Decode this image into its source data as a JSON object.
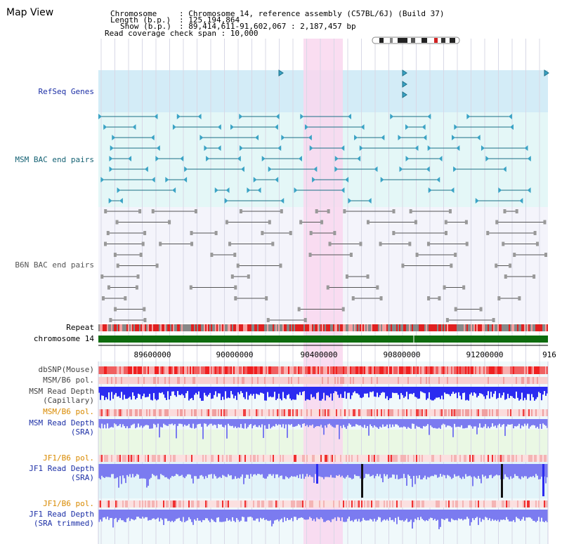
{
  "page": {
    "title": "Map View"
  },
  "info": {
    "chromosome_key": "Chromosome",
    "chromosome_val": ": Chromosome 14, reference assembly (C57BL/6J) (Build 37)",
    "length_key": "Length (b.p.)",
    "length_val": ": 125,194,864",
    "show_key": "Show (b.p.)",
    "show_val": ": 89,414,611-91,602,067 : 2,187,457 bp",
    "coverage": "Read coverage check span : 10,000"
  },
  "tracks": {
    "refseq": "RefSeq Genes",
    "msm_bac": "MSM BAC end pairs",
    "b6n_bac": "B6N BAC end pairs",
    "repeat": "Repeat",
    "chromosome": "chromosome 14",
    "dbsnp": "dbSNP(Mouse)",
    "msm_b6_pol1": "MSM/B6 pol.",
    "msm_depth_cap_1": "MSM Read Depth",
    "msm_depth_cap_2": "(Capillary)",
    "msm_b6_pol2": "MSM/B6 pol.",
    "msm_depth_sra_1": "MSM Read Depth",
    "msm_depth_sra_2": "(SRA)",
    "jf1_b6_pol1": "JF1/B6 pol.",
    "jf1_depth_sra_1": "JF1 Read Depth",
    "jf1_depth_sra_2": "(SRA)",
    "jf1_b6_pol2": "JF1/B6 pol.",
    "jf1_depth_trim_1": "JF1 Read Depth",
    "jf1_depth_trim_2": "(SRA trimmed)"
  },
  "axis": {
    "ticks": [
      "89600000",
      "90000000",
      "90400000",
      "90800000",
      "91200000",
      "916"
    ]
  },
  "colors": {
    "refseq_bg": "#d3ecf7",
    "msm_bg": "#e4f7f7",
    "highlight": "#f9d7ef",
    "chromosome": "#0d6b0d",
    "depth_blue": "#2b2bf0",
    "depth_light": "#7b7bf0"
  }
}
